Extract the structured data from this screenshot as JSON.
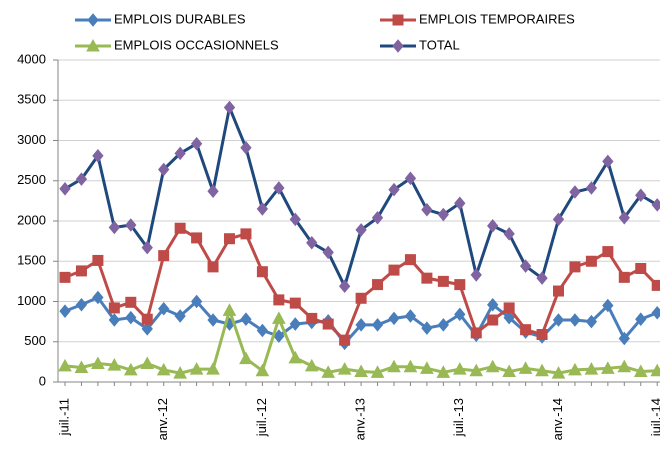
{
  "chart_data": {
    "type": "line",
    "categories": [
      "juil.-11",
      null,
      null,
      null,
      null,
      null,
      "anv.-12",
      null,
      null,
      null,
      null,
      null,
      "juil.-12",
      null,
      null,
      null,
      null,
      null,
      "anv.-13",
      null,
      null,
      null,
      null,
      null,
      "juil.-13",
      null,
      null,
      null,
      null,
      null,
      "anv.-14",
      null,
      null,
      null,
      null,
      null,
      "juil.-14"
    ],
    "series": [
      {
        "name": "EMPLOIS DURABLES",
        "color": "#4a7ebb",
        "marker": "diamond",
        "marker_color": "#4a7ebb",
        "values": [
          880,
          960,
          1050,
          770,
          800,
          660,
          910,
          820,
          1000,
          770,
          720,
          780,
          640,
          570,
          720,
          740,
          760,
          480,
          710,
          710,
          790,
          820,
          670,
          710,
          840,
          580,
          960,
          800,
          620,
          560,
          770,
          770,
          750,
          950,
          540,
          780,
          860
        ]
      },
      {
        "name": "EMPLOIS TEMPORAIRES",
        "color": "#be4b48",
        "marker": "square",
        "marker_color": "#be4b48",
        "values": [
          1300,
          1380,
          1510,
          920,
          990,
          780,
          1570,
          1910,
          1790,
          1430,
          1780,
          1840,
          1370,
          1020,
          980,
          790,
          720,
          520,
          1040,
          1210,
          1390,
          1520,
          1290,
          1250,
          1210,
          610,
          770,
          920,
          650,
          590,
          1130,
          1430,
          1500,
          1620,
          1300,
          1410,
          1200
        ]
      },
      {
        "name": "EMPLOIS OCCASIONNELS",
        "color": "#98b954",
        "marker": "triangle",
        "marker_color": "#98b954",
        "values": [
          200,
          180,
          230,
          210,
          150,
          230,
          150,
          110,
          160,
          160,
          890,
          290,
          140,
          790,
          300,
          200,
          120,
          160,
          130,
          120,
          190,
          190,
          170,
          120,
          160,
          140,
          190,
          130,
          170,
          140,
          110,
          150,
          160,
          170,
          190,
          130,
          140
        ]
      },
      {
        "name": "TOTAL",
        "color": "#1f497d",
        "marker": "diamond",
        "marker_color": "#8064a2",
        "values": [
          2400,
          2520,
          2810,
          1920,
          1950,
          1670,
          2640,
          2840,
          2960,
          2370,
          3410,
          2910,
          2150,
          2410,
          2020,
          1730,
          1610,
          1190,
          1890,
          2040,
          2390,
          2530,
          2140,
          2080,
          2220,
          1330,
          1940,
          1840,
          1440,
          1290,
          2020,
          2360,
          2410,
          2740,
          2040,
          2320,
          2200
        ]
      }
    ],
    "ylim": [
      0,
      4000
    ],
    "yticks": [
      0,
      500,
      1000,
      1500,
      2000,
      2500,
      3000,
      3500,
      4000
    ],
    "grid": true,
    "legend": "top"
  }
}
